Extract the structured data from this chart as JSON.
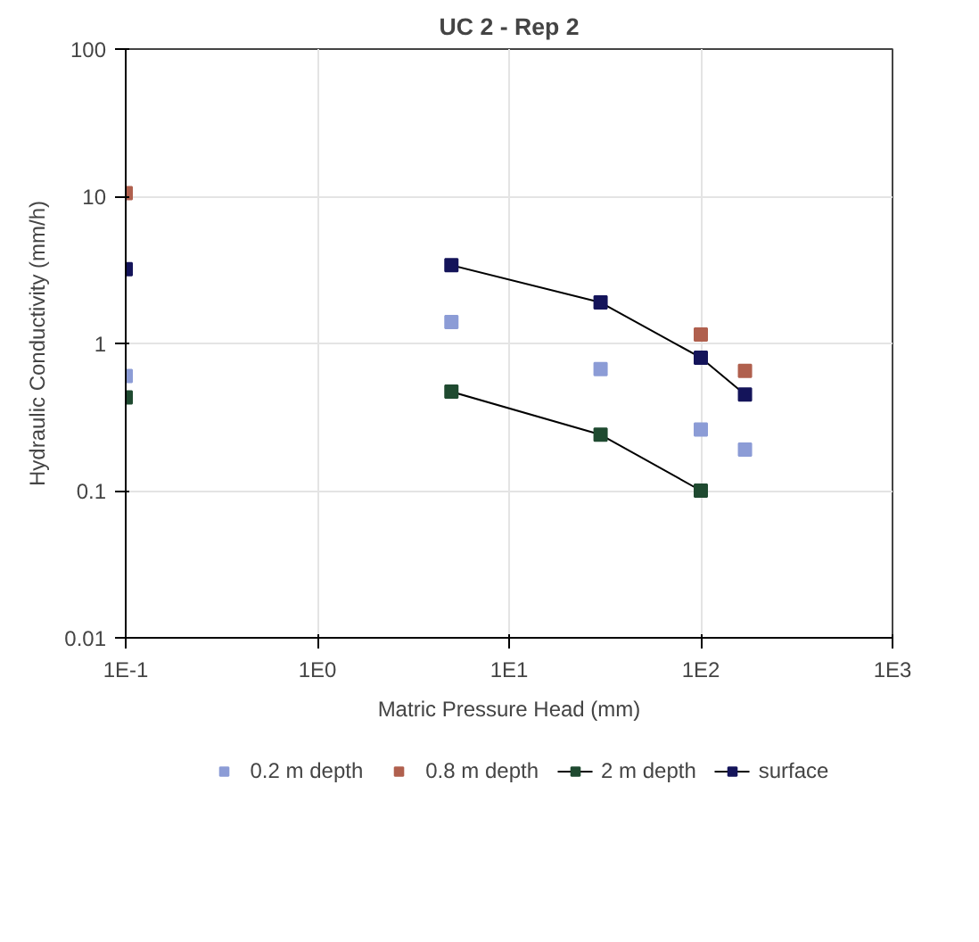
{
  "chart_data": {
    "type": "scatter",
    "title": "UC 2 - Rep 2",
    "xlabel": "Matric Pressure Head (mm)",
    "ylabel": "Hydraulic Conductivity (mm/h)",
    "log": "xy",
    "xlim": [
      0.1,
      1000
    ],
    "ylim": [
      0.01,
      100
    ],
    "xticks": [
      {
        "value": 0.1,
        "label": "1E-1"
      },
      {
        "value": 1,
        "label": "1E0"
      },
      {
        "value": 10,
        "label": "1E1"
      },
      {
        "value": 100,
        "label": "1E2"
      },
      {
        "value": 1000,
        "label": "1E3"
      }
    ],
    "yticks": [
      {
        "value": 0.01,
        "label": "0.01"
      },
      {
        "value": 0.1,
        "label": "0.1"
      },
      1,
      10,
      100
    ],
    "grid": true,
    "legend": "bottom",
    "marker": "square",
    "series": [
      {
        "name": "0.2 m depth",
        "type": "scatter",
        "color": "#8c9cd6",
        "x": [
          0.1,
          5,
          30,
          100,
          170
        ],
        "values": [
          0.6,
          1.4,
          0.67,
          0.26,
          0.19
        ]
      },
      {
        "name": "0.8 m depth",
        "type": "scatter",
        "color": "#b0604e",
        "x": [
          0.1,
          100,
          170
        ],
        "values": [
          10.5,
          1.15,
          0.65
        ]
      },
      {
        "name": "2 m depth",
        "type": "line",
        "color": "#1f4a30",
        "x": [
          0.1,
          1,
          5,
          30,
          100
        ],
        "values": [
          0.43,
          null,
          0.47,
          0.24,
          0.1
        ]
      },
      {
        "name": "surface",
        "type": "line",
        "color": "#14145a",
        "x": [
          0.1,
          1,
          5,
          30,
          100,
          170
        ],
        "values": [
          3.2,
          null,
          3.4,
          1.9,
          0.8,
          0.45
        ]
      }
    ]
  }
}
